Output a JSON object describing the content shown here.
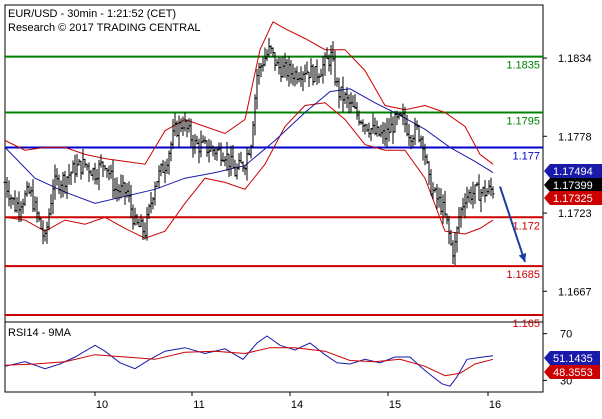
{
  "header": {
    "title": "EUR/USD - 30min - 1:21:52 (CET)",
    "subtitle": "Research © 2017 TRADING CENTRAL"
  },
  "colors": {
    "candle": "#000000",
    "bollinger": "#cc0000",
    "ma": "#1a1aaa",
    "resistance": "#008000",
    "pivot": "#0000cc",
    "support": "#cc0000",
    "rsi": "#1a1aaa",
    "rsi_ma": "#cc0000",
    "arrow": "#1a3ea0",
    "current_price_bg": "#000000",
    "upper_band_bg": "#1a1aaa",
    "lower_band_bg": "#cc0000"
  },
  "chart_data": [
    {
      "type": "candlestick",
      "title": "EUR/USD - 30min - 1:21:52 (CET)",
      "ylim": [
        1.1645,
        1.1872
      ],
      "price_axis_labels": [
        "1.1834",
        "1.1778",
        "1.1723",
        "1.1667"
      ],
      "price_axis_values": [
        1.1834,
        1.1778,
        1.1723,
        1.1667
      ],
      "x_axis_labels": [
        "10",
        "11",
        "14",
        "15",
        "16"
      ],
      "levels": [
        {
          "label": "1.1835",
          "value": 1.1835,
          "kind": "resistance"
        },
        {
          "label": "1.1795",
          "value": 1.1795,
          "kind": "resistance"
        },
        {
          "label": "1.177",
          "value": 1.177,
          "kind": "pivot"
        },
        {
          "label": "1.172",
          "value": 1.172,
          "kind": "support"
        },
        {
          "label": "1.1685",
          "value": 1.1685,
          "kind": "support"
        },
        {
          "label": "1.165",
          "value": 1.165,
          "kind": "support"
        }
      ],
      "markers": [
        {
          "label": "1.17494",
          "value": 1.17494,
          "kind": "upper_band"
        },
        {
          "label": "1.17399",
          "value": 1.17399,
          "kind": "current_price"
        },
        {
          "label": "1.17325",
          "value": 1.17325,
          "kind": "lower_band"
        }
      ],
      "close_path": [
        [
          0,
          1.1745
        ],
        [
          10,
          1.1728
        ],
        [
          25,
          1.1738
        ],
        [
          40,
          1.1703
        ],
        [
          48,
          1.1743
        ],
        [
          60,
          1.1748
        ],
        [
          70,
          1.1755
        ],
        [
          80,
          1.1758
        ],
        [
          90,
          1.1752
        ],
        [
          100,
          1.176
        ],
        [
          110,
          1.174
        ],
        [
          122,
          1.1738
        ],
        [
          130,
          1.1715
        ],
        [
          140,
          1.171
        ],
        [
          150,
          1.1745
        ],
        [
          160,
          1.1758
        ],
        [
          170,
          1.1782
        ],
        [
          178,
          1.1788
        ],
        [
          190,
          1.1772
        ],
        [
          200,
          1.177
        ],
        [
          210,
          1.1768
        ],
        [
          220,
          1.1766
        ],
        [
          230,
          1.1752
        ],
        [
          240,
          1.176
        ],
        [
          246,
          1.1775
        ],
        [
          252,
          1.1822
        ],
        [
          258,
          1.1832
        ],
        [
          265,
          1.184
        ],
        [
          272,
          1.1828
        ],
        [
          280,
          1.1825
        ],
        [
          290,
          1.1823
        ],
        [
          300,
          1.1826
        ],
        [
          310,
          1.1822
        ],
        [
          320,
          1.183
        ],
        [
          326,
          1.1835
        ],
        [
          333,
          1.181
        ],
        [
          340,
          1.1805
        ],
        [
          350,
          1.1795
        ],
        [
          360,
          1.1788
        ],
        [
          370,
          1.178
        ],
        [
          380,
          1.1778
        ],
        [
          390,
          1.1788
        ],
        [
          398,
          1.179
        ],
        [
          405,
          1.178
        ],
        [
          412,
          1.1782
        ],
        [
          418,
          1.1775
        ],
        [
          424,
          1.1745
        ],
        [
          430,
          1.1735
        ],
        [
          437,
          1.1728
        ],
        [
          442,
          1.1715
        ],
        [
          446,
          1.17
        ],
        [
          449,
          1.1695
        ],
        [
          454,
          1.172
        ],
        [
          460,
          1.1735
        ],
        [
          470,
          1.1738
        ],
        [
          480,
          1.1738
        ],
        [
          488,
          1.174
        ]
      ],
      "moving_average": [
        [
          0,
          1.177
        ],
        [
          30,
          1.1748
        ],
        [
          60,
          1.1738
        ],
        [
          90,
          1.173
        ],
        [
          120,
          1.1735
        ],
        [
          150,
          1.174
        ],
        [
          180,
          1.1748
        ],
        [
          210,
          1.1752
        ],
        [
          240,
          1.1757
        ],
        [
          270,
          1.1775
        ],
        [
          300,
          1.1795
        ],
        [
          325,
          1.181
        ],
        [
          345,
          1.1812
        ],
        [
          370,
          1.1802
        ],
        [
          395,
          1.1793
        ],
        [
          420,
          1.1783
        ],
        [
          445,
          1.177
        ],
        [
          470,
          1.176
        ],
        [
          488,
          1.1752
        ]
      ],
      "upper_band": [
        [
          0,
          1.1775
        ],
        [
          20,
          1.1768
        ],
        [
          40,
          1.177
        ],
        [
          60,
          1.177
        ],
        [
          80,
          1.1765
        ],
        [
          100,
          1.1762
        ],
        [
          120,
          1.176
        ],
        [
          140,
          1.1758
        ],
        [
          160,
          1.1782
        ],
        [
          180,
          1.179
        ],
        [
          200,
          1.1785
        ],
        [
          220,
          1.178
        ],
        [
          240,
          1.179
        ],
        [
          255,
          1.184
        ],
        [
          268,
          1.186
        ],
        [
          280,
          1.1855
        ],
        [
          300,
          1.1848
        ],
        [
          320,
          1.184
        ],
        [
          340,
          1.184
        ],
        [
          360,
          1.1825
        ],
        [
          380,
          1.18
        ],
        [
          400,
          1.1797
        ],
        [
          420,
          1.18
        ],
        [
          440,
          1.1795
        ],
        [
          460,
          1.1785
        ],
        [
          475,
          1.1765
        ],
        [
          488,
          1.1758
        ]
      ],
      "lower_band": [
        [
          0,
          1.172
        ],
        [
          20,
          1.1718
        ],
        [
          40,
          1.171
        ],
        [
          60,
          1.1718
        ],
        [
          80,
          1.1715
        ],
        [
          100,
          1.172
        ],
        [
          120,
          1.1712
        ],
        [
          140,
          1.1705
        ],
        [
          160,
          1.171
        ],
        [
          180,
          1.173
        ],
        [
          200,
          1.1748
        ],
        [
          220,
          1.1745
        ],
        [
          240,
          1.174
        ],
        [
          260,
          1.1758
        ],
        [
          280,
          1.1785
        ],
        [
          300,
          1.18
        ],
        [
          320,
          1.1802
        ],
        [
          340,
          1.179
        ],
        [
          360,
          1.1772
        ],
        [
          380,
          1.1768
        ],
        [
          400,
          1.1768
        ],
        [
          420,
          1.1748
        ],
        [
          440,
          1.171
        ],
        [
          460,
          1.1708
        ],
        [
          475,
          1.1712
        ],
        [
          488,
          1.1718
        ]
      ],
      "projection_arrow": {
        "from": [
          495,
          1.1742
        ],
        "to": [
          520,
          1.1688
        ]
      }
    },
    {
      "type": "line",
      "title": "RSI14 - 9MA",
      "ylim": [
        20,
        80
      ],
      "y_axis_labels": [
        "70",
        "30"
      ],
      "y_axis_values": [
        70,
        30
      ],
      "markers": [
        {
          "label": "51.1435",
          "value": 51.1435,
          "kind": "rsi"
        },
        {
          "label": "48.3553",
          "value": 48.3553,
          "kind": "rsi_ma"
        }
      ],
      "series": [
        {
          "kind": "rsi",
          "values": [
            [
              0,
              42
            ],
            [
              20,
              46
            ],
            [
              40,
              40
            ],
            [
              55,
              44
            ],
            [
              70,
              50
            ],
            [
              90,
              60
            ],
            [
              100,
              55
            ],
            [
              115,
              45
            ],
            [
              130,
              40
            ],
            [
              145,
              48
            ],
            [
              160,
              55
            ],
            [
              180,
              58
            ],
            [
              200,
              53
            ],
            [
              220,
              57
            ],
            [
              238,
              48
            ],
            [
              252,
              62
            ],
            [
              262,
              68
            ],
            [
              275,
              60
            ],
            [
              290,
              56
            ],
            [
              305,
              62
            ],
            [
              320,
              52
            ],
            [
              332,
              45
            ],
            [
              345,
              44
            ],
            [
              360,
              48
            ],
            [
              375,
              45
            ],
            [
              390,
              50
            ],
            [
              405,
              50
            ],
            [
              415,
              42
            ],
            [
              425,
              35
            ],
            [
              437,
              27
            ],
            [
              445,
              25
            ],
            [
              452,
              33
            ],
            [
              462,
              48
            ],
            [
              478,
              50
            ],
            [
              488,
              51
            ]
          ]
        },
        {
          "kind": "rsi_ma",
          "values": [
            [
              0,
              43
            ],
            [
              30,
              44
            ],
            [
              60,
              46
            ],
            [
              90,
              52
            ],
            [
              120,
              50
            ],
            [
              150,
              48
            ],
            [
              180,
              54
            ],
            [
              210,
              55
            ],
            [
              240,
              53
            ],
            [
              265,
              58
            ],
            [
              290,
              58
            ],
            [
              320,
              55
            ],
            [
              345,
              47
            ],
            [
              370,
              46
            ],
            [
              395,
              48
            ],
            [
              420,
              42
            ],
            [
              440,
              34
            ],
            [
              455,
              36
            ],
            [
              470,
              44
            ],
            [
              488,
              48
            ]
          ]
        }
      ]
    }
  ]
}
